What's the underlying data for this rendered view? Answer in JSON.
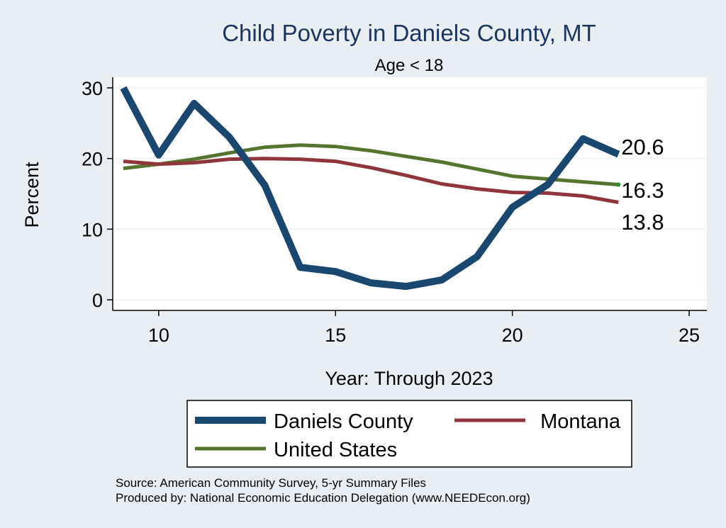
{
  "chart_data": {
    "type": "line",
    "title": "Child Poverty in Daniels County, MT",
    "subtitle": "Age < 18",
    "xlabel": "Year: Through 2023",
    "ylabel": "Percent",
    "xlim": [
      8.7,
      25.5
    ],
    "ylim": [
      -1.5,
      31.5
    ],
    "xticks": [
      10,
      15,
      20,
      25
    ],
    "yticks": [
      0,
      10,
      20,
      30
    ],
    "x": [
      9,
      10,
      11,
      12,
      13,
      14,
      15,
      16,
      17,
      18,
      19,
      20,
      21,
      22,
      23
    ],
    "series": [
      {
        "name": "Daniels County",
        "color": "#1a476f",
        "values": [
          30.0,
          20.5,
          27.8,
          23.0,
          16.2,
          4.6,
          4.0,
          2.4,
          1.9,
          2.8,
          6.1,
          13.1,
          16.3,
          22.8,
          20.6
        ],
        "end_label": "20.6"
      },
      {
        "name": "Montana",
        "color": "#90353b",
        "values": [
          19.6,
          19.2,
          19.4,
          19.9,
          20.0,
          19.9,
          19.6,
          18.7,
          17.6,
          16.4,
          15.7,
          15.2,
          15.1,
          14.7,
          13.8
        ],
        "end_label": "13.8"
      },
      {
        "name": "United States",
        "color": "#55752f",
        "values": [
          18.6,
          19.2,
          19.9,
          20.8,
          21.6,
          21.9,
          21.7,
          21.1,
          20.3,
          19.5,
          18.5,
          17.5,
          17.1,
          16.7,
          16.3
        ],
        "end_label": "16.3"
      }
    ],
    "legend": [
      "Daniels County",
      "Montana",
      "United States"
    ],
    "legend_position": "bottom",
    "grid": true
  },
  "source": {
    "line1": "Source: American Community Survey, 5-yr Summary Files",
    "line2": "Produced by: National Economic Education Delegation (www.NEEDEcon.org)"
  }
}
